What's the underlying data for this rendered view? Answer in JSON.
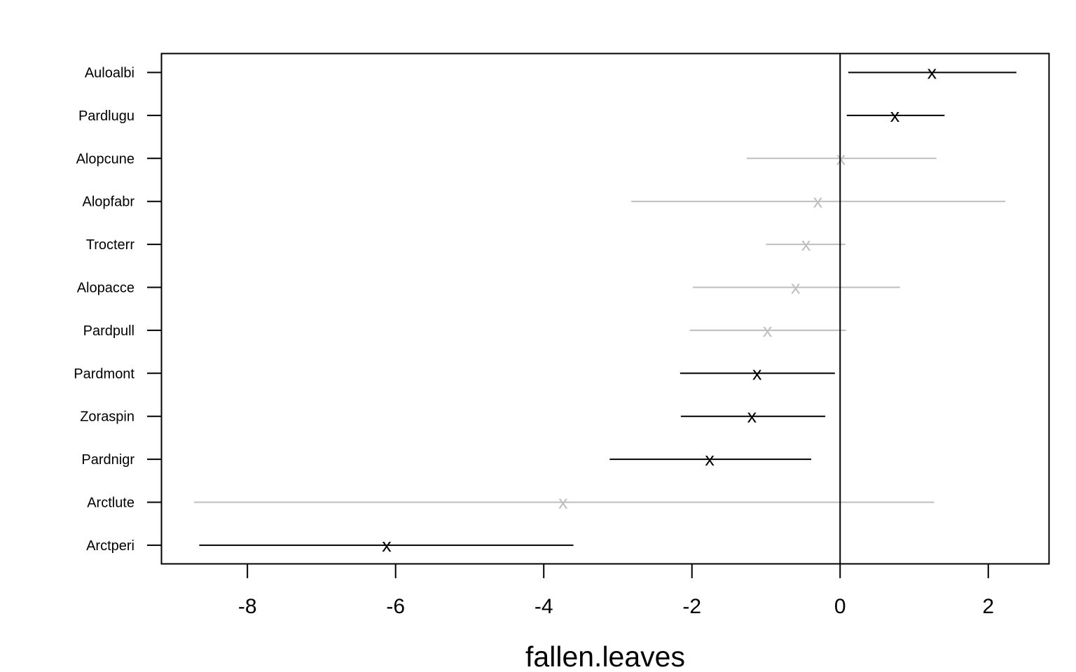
{
  "chart_data": {
    "type": "scatter",
    "subtype": "coefficient-interval-plot",
    "xlabel": "fallen.leaves",
    "ylabel": "",
    "title": "",
    "xlim": [
      -9.16,
      2.82
    ],
    "x_ticks": [
      -8,
      -6,
      -4,
      -2,
      0,
      2
    ],
    "x_tick_labels": [
      "-8",
      "-6",
      "-4",
      "-2",
      "0",
      "2"
    ],
    "reference_line_x": 0,
    "marker_symbol": "x",
    "colors": {
      "significant": "#000000",
      "not_significant": "#bebebe"
    },
    "categories": [
      "Auloalbi",
      "Pardlugu",
      "Alopcune",
      "Alopfabr",
      "Trocterr",
      "Alopacce",
      "Pardpull",
      "Pardmont",
      "Zoraspin",
      "Pardnigr",
      "Arctlute",
      "Arctperi"
    ],
    "estimates": [
      1.24,
      0.74,
      0.01,
      -0.3,
      -0.46,
      -0.6,
      -0.98,
      -1.12,
      -1.19,
      -1.76,
      -3.74,
      -6.12
    ],
    "lower": [
      0.11,
      0.09,
      -1.26,
      -2.82,
      -1.0,
      -1.99,
      -2.03,
      -2.16,
      -2.15,
      -3.11,
      -8.72,
      -8.65
    ],
    "upper": [
      2.38,
      1.41,
      1.3,
      2.23,
      0.07,
      0.81,
      0.08,
      -0.07,
      -0.2,
      -0.39,
      1.27,
      -3.6
    ],
    "significant": [
      true,
      true,
      false,
      false,
      false,
      false,
      false,
      true,
      true,
      true,
      false,
      true
    ]
  }
}
